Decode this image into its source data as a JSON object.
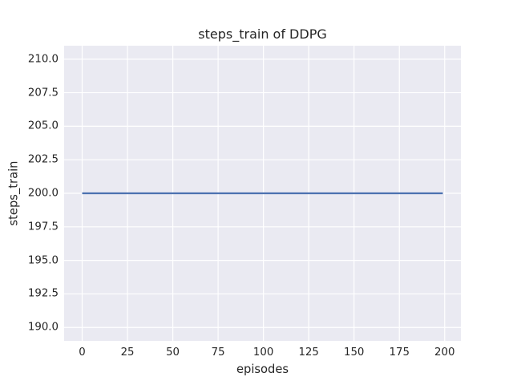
{
  "chart_data": {
    "type": "line",
    "title": "steps_train of DDPG",
    "xlabel": "episodes",
    "ylabel": "steps_train",
    "xlim": [
      -9.95,
      208.95
    ],
    "ylim": [
      189.0,
      211.0
    ],
    "xticks": [
      0,
      25,
      50,
      75,
      100,
      125,
      150,
      175,
      200
    ],
    "xtick_labels": [
      "0",
      "25",
      "50",
      "75",
      "100",
      "125",
      "150",
      "175",
      "200"
    ],
    "yticks": [
      190.0,
      192.5,
      195.0,
      197.5,
      200.0,
      202.5,
      205.0,
      207.5,
      210.0
    ],
    "ytick_labels": [
      "190.0",
      "192.5",
      "195.0",
      "197.5",
      "200.0",
      "202.5",
      "205.0",
      "207.5",
      "210.0"
    ],
    "grid": true,
    "legend": false,
    "series": [
      {
        "name": "steps_train",
        "x": [
          0,
          199
        ],
        "y": [
          200,
          200
        ],
        "color": "#4C72B0",
        "line_width": 2.2
      }
    ],
    "styles": {
      "figure_bg": "#ffffff",
      "plot_bg": "#EAEAF2",
      "grid_color": "#ffffff",
      "text_color": "#262626"
    }
  }
}
